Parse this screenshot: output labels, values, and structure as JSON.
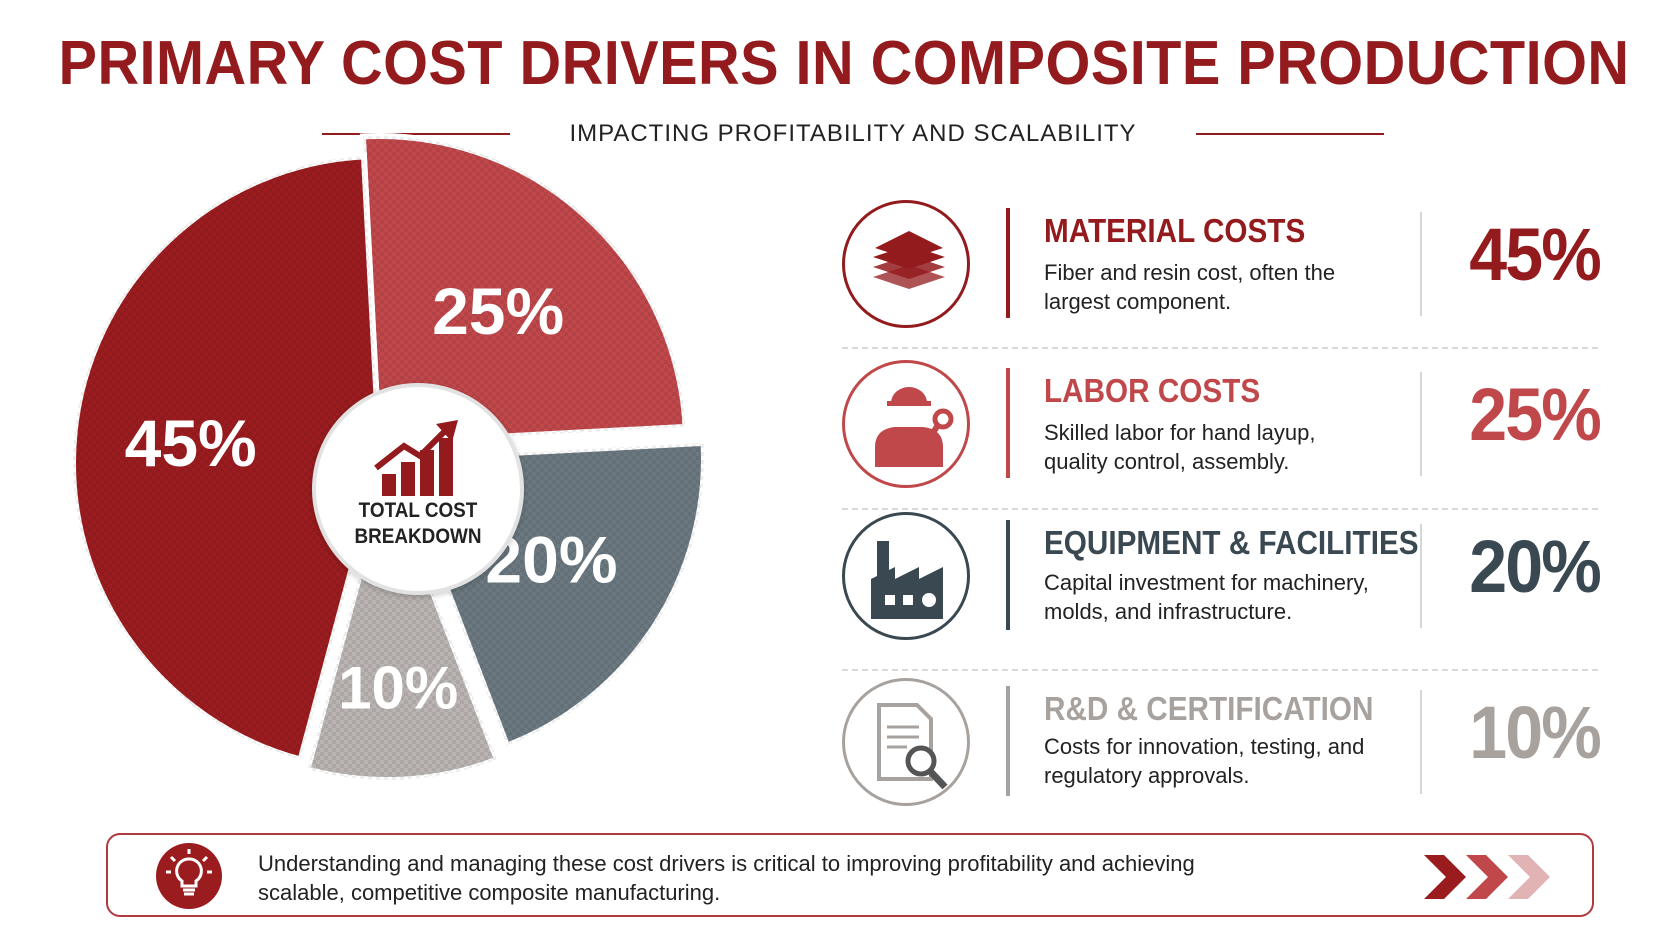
{
  "title": "PRIMARY COST DRIVERS IN COMPOSITE PRODUCTION",
  "subtitle": "IMPACTING PROFITABILITY AND SCALABILITY",
  "chart_data": {
    "type": "pie",
    "title": "PRIMARY COST DRIVERS IN COMPOSITE PRODUCTION",
    "subtitle": "IMPACTING PROFITABILITY AND SCALABILITY",
    "center_label": [
      "TOTAL COST",
      "BREAKDOWN"
    ],
    "slices": [
      {
        "label": "MATERIAL COSTS",
        "value": 45,
        "display": "45%",
        "color": "#9b1c1f"
      },
      {
        "label": "LABOR COSTS",
        "value": 25,
        "display": "25%",
        "color": "#c0474a"
      },
      {
        "label": "EQUIPMENT & FACILITIES",
        "value": 20,
        "display": "20%",
        "color": "#6b7880"
      },
      {
        "label": "R&D & CERTIFICATION",
        "value": 10,
        "display": "10%",
        "color": "#b9b4b1"
      }
    ]
  },
  "drivers": [
    {
      "title": "MATERIAL COSTS",
      "desc": "Fiber and resin cost, often the largest component.",
      "percent": "45%",
      "icon": "material-layers-icon",
      "color": "#931b1e"
    },
    {
      "title": "LABOR COSTS",
      "desc": "Skilled labor for hand layup, quality control, assembly.",
      "percent": "25%",
      "icon": "worker-icon",
      "color": "#c0474a"
    },
    {
      "title": "EQUIPMENT & FACILITIES",
      "desc": "Capital investment for machinery, molds, and infrastructure.",
      "percent": "20%",
      "icon": "factory-icon",
      "color": "#3a4852"
    },
    {
      "title": "R&D & CERTIFICATION",
      "desc": "Costs for innovation, testing, and regulatory approvals.",
      "percent": "10%",
      "icon": "document-search-icon",
      "color": "#a8a29e"
    }
  ],
  "footer": {
    "text": "Understanding and managing these cost drivers is critical to improving profitability and achieving scalable, competitive composite manufacturing.",
    "icon": "lightbulb-icon"
  }
}
